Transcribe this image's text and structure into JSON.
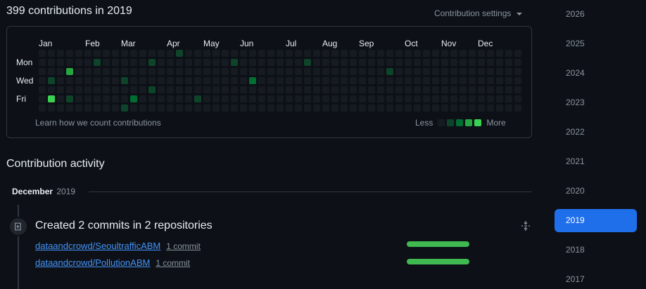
{
  "header": {
    "title": "399 contributions in 2019",
    "settings_label": "Contribution settings"
  },
  "calendar": {
    "months": [
      "Jan",
      "Feb",
      "Mar",
      "Apr",
      "May",
      "Jun",
      "Jul",
      "Aug",
      "Sep",
      "Oct",
      "Nov",
      "Dec"
    ],
    "days": [
      "Mon",
      "Wed",
      "Fri"
    ],
    "learn_label": "Learn how we count contributions",
    "legend_less": "Less",
    "legend_more": "More",
    "colors": [
      "#161b22",
      "#0e4429",
      "#006d32",
      "#26a641",
      "#39d353"
    ],
    "weeks": [
      [
        0,
        0,
        0,
        0,
        0,
        0,
        0
      ],
      [
        0,
        0,
        0,
        1,
        0,
        4,
        0
      ],
      [
        0,
        0,
        0,
        0,
        0,
        0,
        0
      ],
      [
        0,
        0,
        3,
        0,
        0,
        1,
        0
      ],
      [
        0,
        0,
        0,
        0,
        0,
        0,
        0
      ],
      [
        0,
        0,
        0,
        0,
        0,
        0,
        0
      ],
      [
        0,
        1,
        0,
        0,
        0,
        0,
        0
      ],
      [
        0,
        0,
        0,
        0,
        0,
        0,
        0
      ],
      [
        0,
        0,
        0,
        0,
        0,
        0,
        0
      ],
      [
        0,
        0,
        0,
        1,
        0,
        0,
        1
      ],
      [
        0,
        0,
        0,
        0,
        0,
        2,
        0
      ],
      [
        0,
        0,
        0,
        0,
        0,
        0,
        0
      ],
      [
        0,
        1,
        0,
        0,
        1,
        0,
        0
      ],
      [
        0,
        0,
        0,
        0,
        0,
        0,
        0
      ],
      [
        0,
        0,
        0,
        0,
        0,
        0,
        0
      ],
      [
        1,
        0,
        0,
        0,
        0,
        0,
        0
      ],
      [
        0,
        0,
        0,
        0,
        0,
        0,
        0
      ],
      [
        0,
        0,
        0,
        0,
        0,
        1,
        0
      ],
      [
        0,
        0,
        0,
        0,
        0,
        0,
        0
      ],
      [
        0,
        0,
        0,
        0,
        0,
        0,
        0
      ],
      [
        0,
        0,
        0,
        0,
        0,
        0,
        0
      ],
      [
        0,
        1,
        0,
        0,
        0,
        0,
        0
      ],
      [
        0,
        0,
        0,
        0,
        0,
        0,
        0
      ],
      [
        0,
        0,
        0,
        2,
        0,
        0,
        0
      ],
      [
        0,
        0,
        0,
        0,
        0,
        0,
        0
      ],
      [
        0,
        0,
        0,
        0,
        0,
        0,
        0
      ],
      [
        0,
        0,
        0,
        0,
        0,
        0,
        0
      ],
      [
        0,
        0,
        0,
        0,
        0,
        0,
        0
      ],
      [
        0,
        0,
        0,
        0,
        0,
        0,
        0
      ],
      [
        0,
        1,
        0,
        0,
        0,
        0,
        0
      ],
      [
        0,
        0,
        0,
        0,
        0,
        0,
        0
      ],
      [
        0,
        0,
        0,
        0,
        0,
        0,
        0
      ],
      [
        0,
        0,
        0,
        0,
        0,
        0,
        0
      ],
      [
        0,
        0,
        0,
        0,
        0,
        0,
        0
      ],
      [
        0,
        0,
        0,
        0,
        0,
        0,
        0
      ],
      [
        0,
        0,
        0,
        0,
        0,
        0,
        0
      ],
      [
        0,
        0,
        0,
        0,
        0,
        0,
        0
      ],
      [
        0,
        0,
        0,
        0,
        0,
        0,
        0
      ],
      [
        0,
        0,
        1,
        0,
        0,
        0,
        0
      ],
      [
        0,
        0,
        0,
        0,
        0,
        0,
        0
      ],
      [
        0,
        0,
        0,
        0,
        0,
        0,
        0
      ],
      [
        0,
        0,
        0,
        0,
        0,
        0,
        0
      ],
      [
        0,
        0,
        0,
        0,
        0,
        0,
        0
      ],
      [
        0,
        0,
        0,
        0,
        0,
        0,
        0
      ],
      [
        0,
        0,
        0,
        0,
        0,
        0,
        0
      ],
      [
        0,
        0,
        0,
        0,
        0,
        0,
        0
      ],
      [
        0,
        0,
        0,
        0,
        0,
        0,
        0
      ],
      [
        0,
        0,
        0,
        0,
        0,
        0,
        0
      ],
      [
        0,
        0,
        0,
        0,
        0,
        0,
        0
      ],
      [
        0,
        0,
        0,
        0,
        0,
        0,
        0
      ],
      [
        0,
        0,
        0,
        0,
        0,
        0,
        0
      ],
      [
        0,
        0,
        0,
        0,
        0,
        0,
        0
      ],
      [
        0,
        0,
        0,
        0,
        0,
        0,
        0
      ]
    ]
  },
  "activity": {
    "title": "Contribution activity",
    "month": "December",
    "year": "2019",
    "event_title": "Created 2 commits in 2 repositories",
    "repos": [
      {
        "name": "dataandcrowd/SeoultrafficABM",
        "count": "1 commit"
      },
      {
        "name": "dataandcrowd/PollutionABM",
        "count": "1 commit"
      }
    ]
  },
  "years": [
    "2026",
    "2025",
    "2024",
    "2023",
    "2022",
    "2021",
    "2020",
    "2019",
    "2018",
    "2017"
  ],
  "selected_year": "2019"
}
